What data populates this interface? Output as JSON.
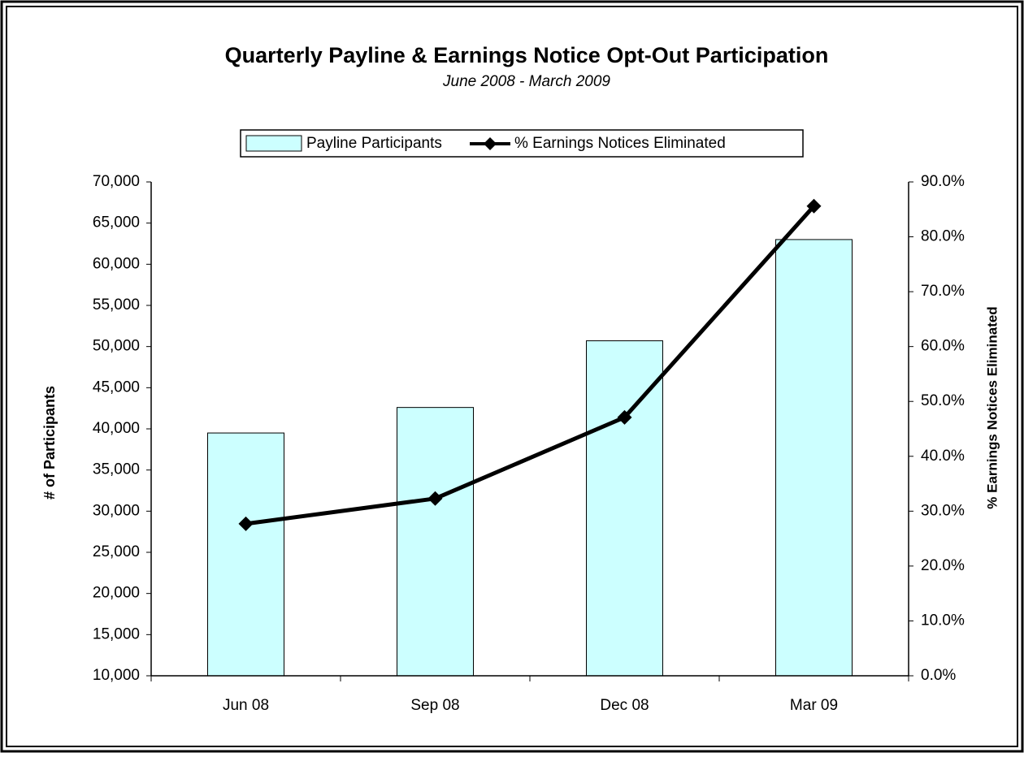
{
  "chart_data": {
    "type": "bar",
    "title": "Quarterly Payline & Earnings Notice Opt-Out Participation",
    "subtitle": "June 2008 - March 2009",
    "categories": [
      "Jun 08",
      "Sep 08",
      "Dec 08",
      "Mar 09"
    ],
    "series": [
      {
        "name": "Payline Participants",
        "type": "bar",
        "color": "#ccffff",
        "values": [
          39500,
          42600,
          50700,
          63000
        ]
      },
      {
        "name": "% Earnings Notices Eliminated",
        "type": "line",
        "axis": "y2",
        "color": "#000000",
        "values": [
          27.7,
          32.3,
          47.1,
          85.6
        ]
      }
    ],
    "ylabel": "# of Participants",
    "y2label": "% Earnings Notices Eliminated",
    "ylim": [
      10000,
      70000
    ],
    "yticks": [
      {
        "value": 10000,
        "label": "10,000"
      },
      {
        "value": 15000,
        "label": "15,000"
      },
      {
        "value": 20000,
        "label": "20,000"
      },
      {
        "value": 25000,
        "label": "25,000"
      },
      {
        "value": 30000,
        "label": "30,000"
      },
      {
        "value": 35000,
        "label": "35,000"
      },
      {
        "value": 40000,
        "label": "40,000"
      },
      {
        "value": 45000,
        "label": "45,000"
      },
      {
        "value": 50000,
        "label": "50,000"
      },
      {
        "value": 55000,
        "label": "55,000"
      },
      {
        "value": 60000,
        "label": "60,000"
      },
      {
        "value": 65000,
        "label": "65,000"
      },
      {
        "value": 70000,
        "label": "70,000"
      }
    ],
    "y2lim": [
      0,
      90
    ],
    "y2ticks": [
      {
        "value": 0,
        "label": "0.0%"
      },
      {
        "value": 10,
        "label": "10.0%"
      },
      {
        "value": 20,
        "label": "20.0%"
      },
      {
        "value": 30,
        "label": "30.0%"
      },
      {
        "value": 40,
        "label": "40.0%"
      },
      {
        "value": 50,
        "label": "50.0%"
      },
      {
        "value": 60,
        "label": "60.0%"
      },
      {
        "value": 70,
        "label": "70.0%"
      },
      {
        "value": 80,
        "label": "80.0%"
      },
      {
        "value": 90,
        "label": "90.0%"
      }
    ],
    "grid": false,
    "legend": "top"
  }
}
